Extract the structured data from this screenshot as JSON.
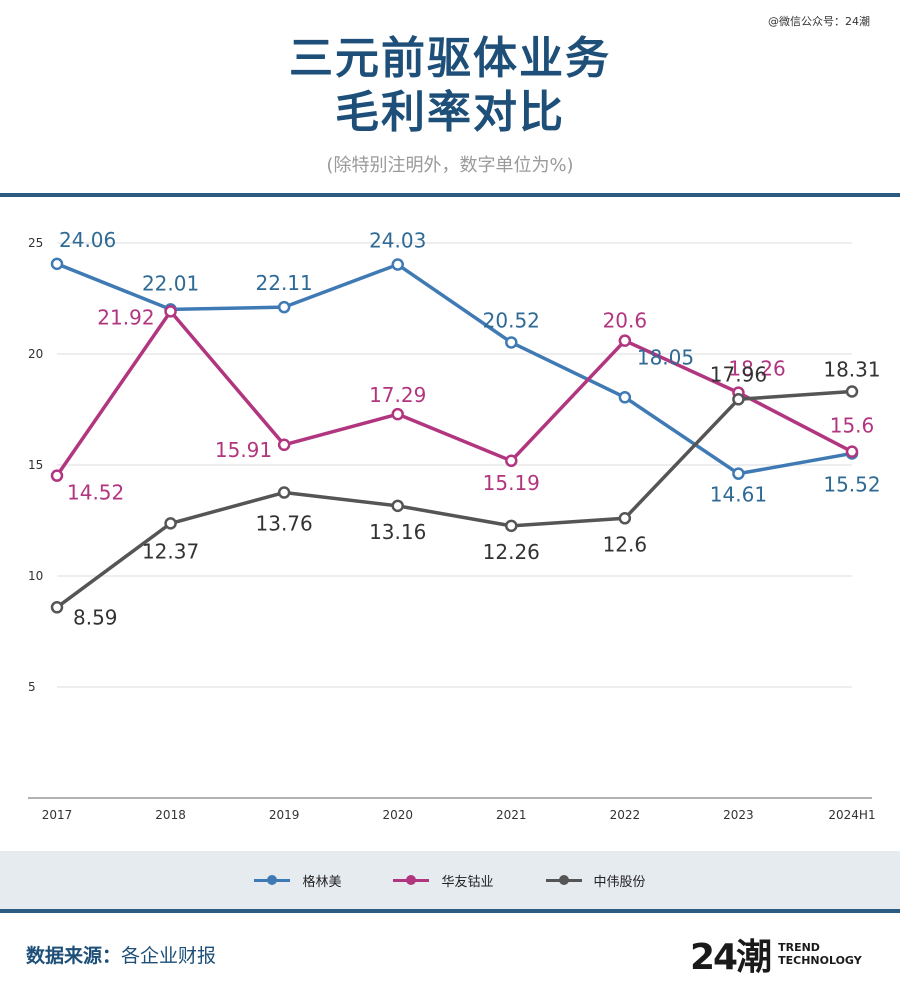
{
  "watermark": "@微信公众号：24潮",
  "title_line1": "三元前驱体业务",
  "title_line2": "毛利率对比",
  "subtitle": "(除特别注明外，数字单位为%)",
  "source_label": "数据来源：",
  "source_value": "各企业财报",
  "logo": {
    "mark": "24潮",
    "line1": "TREND",
    "line2": "TECHNOLOGY"
  },
  "chart_data": {
    "type": "line",
    "categories": [
      "2017",
      "2018",
      "2019",
      "2020",
      "2021",
      "2022",
      "2023",
      "2024H1"
    ],
    "yticks": [
      5,
      10,
      15,
      20,
      25
    ],
    "ylim": [
      0,
      25
    ],
    "grid": true,
    "legend_position": "bottom",
    "series": [
      {
        "name": "格林美",
        "color": "#3f7ab5",
        "label_color": "#2f6a95",
        "values": [
          24.06,
          22.01,
          22.11,
          24.03,
          20.52,
          18.05,
          14.61,
          15.52
        ],
        "labels": [
          "24.06",
          "22.01",
          "22.11",
          "24.03",
          "20.52",
          "18.05",
          "14.61",
          "15.52"
        ]
      },
      {
        "name": "华友钴业",
        "color": "#b1367f",
        "label_color": "#b1367f",
        "values": [
          14.52,
          21.92,
          15.91,
          17.29,
          15.19,
          20.6,
          18.26,
          15.6
        ],
        "labels": [
          "14.52",
          "21.92",
          "15.91",
          "17.29",
          "15.19",
          "20.6",
          "18.26",
          "15.6"
        ]
      },
      {
        "name": "中伟股份",
        "color": "#555555",
        "label_color": "#333333",
        "values": [
          8.59,
          12.37,
          13.76,
          13.16,
          12.26,
          12.6,
          17.96,
          18.31
        ],
        "labels": [
          "8.59",
          "12.37",
          "13.76",
          "13.16",
          "12.26",
          "12.6",
          "17.96",
          "18.31"
        ]
      }
    ]
  }
}
